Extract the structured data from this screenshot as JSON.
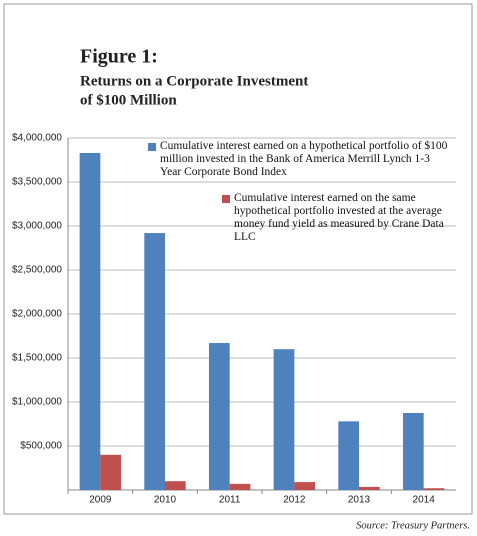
{
  "chart_data": {
    "type": "bar",
    "title": "Figure 1:",
    "subtitle": [
      "Returns on a Corporate Investment",
      "of $100 Million"
    ],
    "categories": [
      "2009",
      "2010",
      "2011",
      "2012",
      "2013",
      "2014"
    ],
    "series": [
      {
        "name": "Cumulative interest earned on a hypothetical portfolio of $100 million invested in the Bank of America Merrill Lynch 1-3 Year Corporate Bond Index",
        "color": "#4f81bd",
        "values": [
          3830000,
          2920000,
          1670000,
          1600000,
          780000,
          875000
        ]
      },
      {
        "name": "Cumulative interest earned on the same hypothetical portfolio invested at the average money fund yield as measured by Crane Data LLC",
        "color": "#c0504d",
        "values": [
          400000,
          100000,
          70000,
          90000,
          35000,
          20000
        ]
      }
    ],
    "ylim": [
      0,
      4000000
    ],
    "yticks": [
      {
        "value": 500000,
        "label": "$500,000"
      },
      {
        "value": 1000000,
        "label": "$1,000,000"
      },
      {
        "value": 1500000,
        "label": "$1,500,000"
      },
      {
        "value": 2000000,
        "label": "$2,000,000"
      },
      {
        "value": 2500000,
        "label": "$2,500,000"
      },
      {
        "value": 3000000,
        "label": "$3,000,000"
      },
      {
        "value": 3500000,
        "label": "$3,500,000"
      },
      {
        "value": 4000000,
        "label": "$4,000,000"
      }
    ],
    "grid": true,
    "source": "Source:  Treasury Partners."
  }
}
